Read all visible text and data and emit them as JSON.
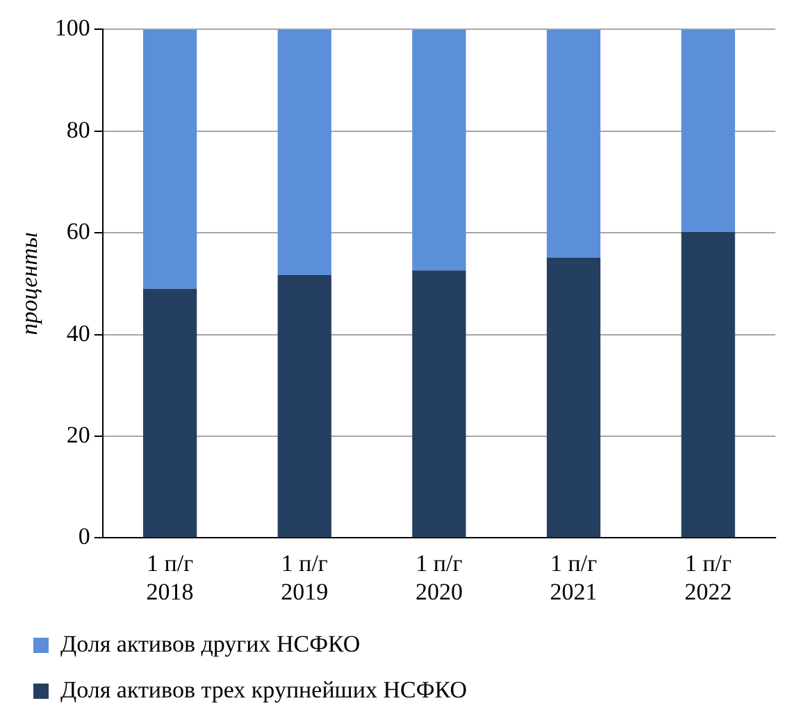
{
  "chart_data": {
    "type": "bar",
    "stacked": true,
    "ylabel": "проценты",
    "categories": [
      "1 п/г 2018",
      "1 п/г 2019",
      "1 п/г 2020",
      "1 п/г 2021",
      "1 п/г 2022"
    ],
    "series": [
      {
        "name": "Доля активов трех крупнейших НСФКО",
        "color": "#243f60",
        "values": [
          49,
          51.7,
          52.6,
          55.1,
          60.2
        ]
      },
      {
        "name": "Доля активов других НСФКО",
        "color": "#5b8fd9",
        "values": [
          51,
          48.3,
          47.4,
          44.9,
          39.8
        ]
      }
    ],
    "ylim": [
      0,
      100
    ],
    "yticks": [
      0,
      20,
      40,
      60,
      80,
      100
    ],
    "grid": "y",
    "legend": "bottom"
  }
}
